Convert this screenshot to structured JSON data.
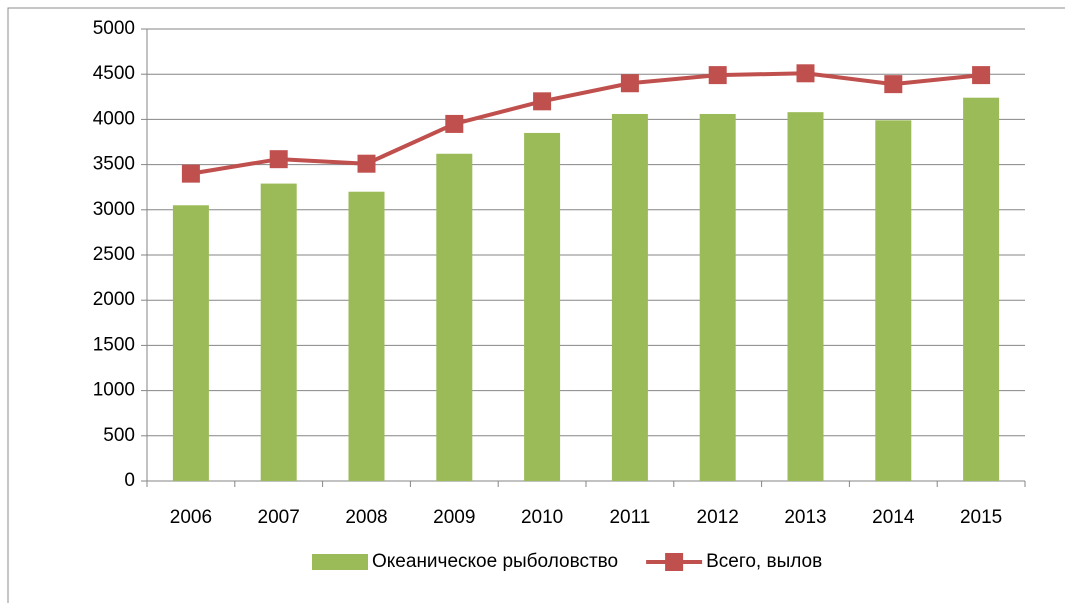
{
  "chart_data": {
    "type": "bar",
    "categories": [
      "2006",
      "2007",
      "2008",
      "2009",
      "2010",
      "2011",
      "2012",
      "2013",
      "2014",
      "2015"
    ],
    "series": [
      {
        "name": "Океаническое рыболовство",
        "type": "bar",
        "color": "#9bbb59",
        "values": [
          3050,
          3290,
          3200,
          3620,
          3850,
          4060,
          4060,
          4080,
          3990,
          4240
        ]
      },
      {
        "name": "Всего, вылов",
        "type": "line",
        "color": "#c0504d",
        "values": [
          3400,
          3560,
          3510,
          3950,
          4200,
          4400,
          4490,
          4510,
          4390,
          4490
        ]
      }
    ],
    "ylim": [
      0,
      5000
    ],
    "yticks": [
      0,
      500,
      1000,
      1500,
      2000,
      2500,
      3000,
      3500,
      4000,
      4500,
      5000
    ],
    "grid": true,
    "legend": "bottom"
  }
}
